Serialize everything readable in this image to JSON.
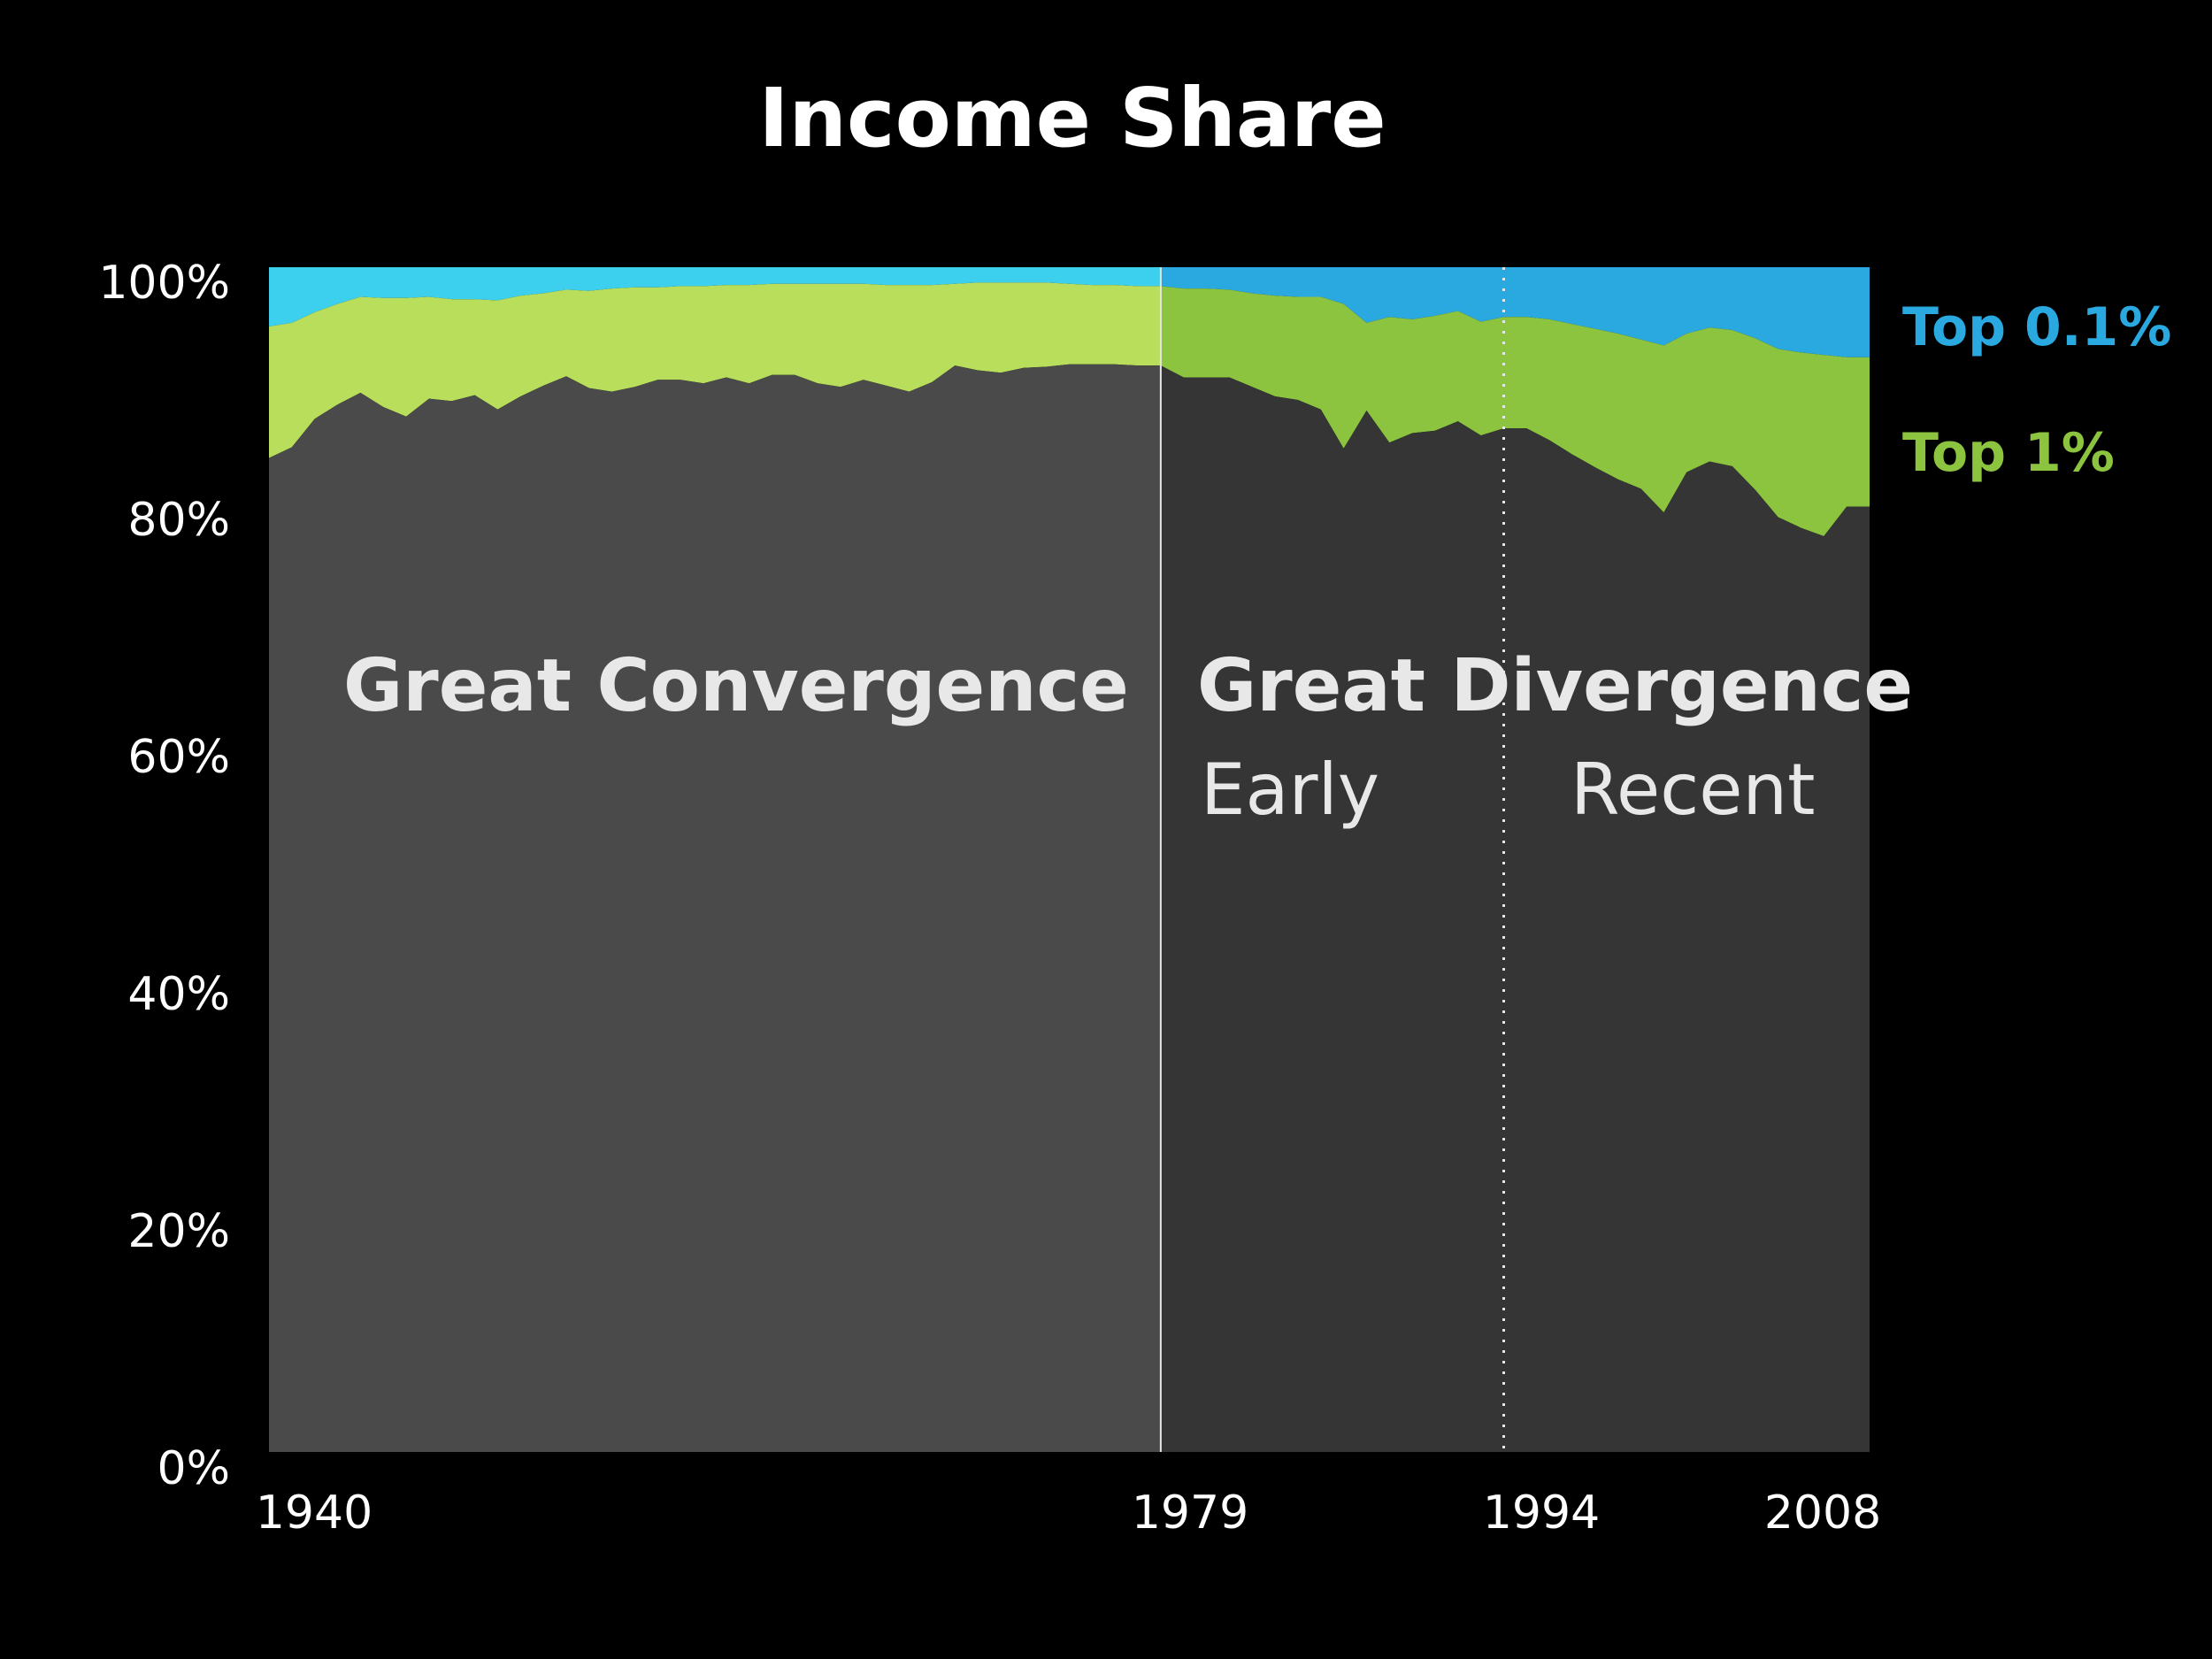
{
  "chart_data": {
    "type": "area",
    "title": "Income Share",
    "xlabel": "",
    "ylabel": "",
    "xlim": [
      1940,
      2010
    ],
    "ylim": [
      0,
      100
    ],
    "x_ticks": [
      "1940",
      "1979",
      "1994",
      "2008"
    ],
    "y_ticks": [
      "0%",
      "20%",
      "40%",
      "60%",
      "80%",
      "100%"
    ],
    "stacked": true,
    "legend_placement": "right",
    "years": [
      1940,
      1941,
      1942,
      1943,
      1944,
      1945,
      1946,
      1947,
      1948,
      1949,
      1950,
      1951,
      1952,
      1953,
      1954,
      1955,
      1956,
      1957,
      1958,
      1959,
      1960,
      1961,
      1962,
      1963,
      1964,
      1965,
      1966,
      1967,
      1968,
      1969,
      1970,
      1971,
      1972,
      1973,
      1974,
      1975,
      1976,
      1977,
      1978,
      1979,
      1980,
      1981,
      1982,
      1983,
      1984,
      1985,
      1986,
      1987,
      1988,
      1989,
      1990,
      1991,
      1992,
      1993,
      1994,
      1995,
      1996,
      1997,
      1998,
      1999,
      2000,
      2001,
      2002,
      2003,
      2004,
      2005,
      2006,
      2007,
      2008,
      2009,
      2010
    ],
    "series": [
      {
        "key": "bottom99",
        "values": [
          83.9,
          84.8,
          87.2,
          88.4,
          89.4,
          88.2,
          87.4,
          88.9,
          88.7,
          89.2,
          88.0,
          89.1,
          90.0,
          90.8,
          89.8,
          89.5,
          89.9,
          90.5,
          90.5,
          90.2,
          90.7,
          90.2,
          90.9,
          90.9,
          90.2,
          89.9,
          90.5,
          90.0,
          89.5,
          90.3,
          91.7,
          91.3,
          91.1,
          91.5,
          91.6,
          91.8,
          91.8,
          91.8,
          91.7,
          91.7,
          90.7,
          90.7,
          90.7,
          89.9,
          89.1,
          88.8,
          88.0,
          84.7,
          87.9,
          85.2,
          86.0,
          86.2,
          87.0,
          85.8,
          86.4,
          86.4,
          85.4,
          84.2,
          83.1,
          82.1,
          81.3,
          79.3,
          82.7,
          83.6,
          83.2,
          81.2,
          78.9,
          78.0,
          77.3,
          79.8,
          79.8
        ]
      },
      {
        "name": "Top 1%",
        "key": "top1",
        "values": [
          95.0,
          95.3,
          96.2,
          96.9,
          97.5,
          97.4,
          97.4,
          97.5,
          97.3,
          97.3,
          97.2,
          97.6,
          97.8,
          98.1,
          98.0,
          98.2,
          98.3,
          98.3,
          98.4,
          98.4,
          98.5,
          98.5,
          98.6,
          98.6,
          98.6,
          98.6,
          98.6,
          98.5,
          98.5,
          98.5,
          98.6,
          98.7,
          98.7,
          98.7,
          98.7,
          98.6,
          98.5,
          98.5,
          98.4,
          98.4,
          98.2,
          98.2,
          98.1,
          97.8,
          97.6,
          97.5,
          97.5,
          96.9,
          95.3,
          95.8,
          95.6,
          95.9,
          96.3,
          95.4,
          95.8,
          95.8,
          95.6,
          95.2,
          94.8,
          94.4,
          93.9,
          93.4,
          94.4,
          94.9,
          94.7,
          94.0,
          93.1,
          92.8,
          92.6,
          92.4,
          92.4
        ]
      },
      {
        "name": "Top 0.1%",
        "key": "top01",
        "values": [
          100,
          100,
          100,
          100,
          100,
          100,
          100,
          100,
          100,
          100,
          100,
          100,
          100,
          100,
          100,
          100,
          100,
          100,
          100,
          100,
          100,
          100,
          100,
          100,
          100,
          100,
          100,
          100,
          100,
          100,
          100,
          100,
          100,
          100,
          100,
          100,
          100,
          100,
          100,
          100,
          100,
          100,
          100,
          100,
          100,
          100,
          100,
          100,
          100,
          100,
          100,
          100,
          100,
          100,
          100,
          100,
          100,
          100,
          100,
          100,
          100,
          100,
          100,
          100,
          100,
          100,
          100,
          100,
          100,
          100,
          100
        ]
      }
    ],
    "annotations": {
      "convergence": "Great Convergence",
      "divergence": "Great Divergence",
      "early": "Early",
      "recent": "Recent"
    },
    "divider_years": [
      1979,
      1994
    ],
    "colors": {
      "background": "#000000",
      "bottom_left": "#4a4a4a",
      "bottom_right": "#353535",
      "top1_left": "#b8de5c",
      "top1_right": "#8cc43f",
      "top01_left": "#3ccfee",
      "top01_right": "#2aa8e0",
      "top1_label": "#8cc43f",
      "top01_label": "#2aa8e0",
      "axis_text": "#ffffff"
    }
  }
}
